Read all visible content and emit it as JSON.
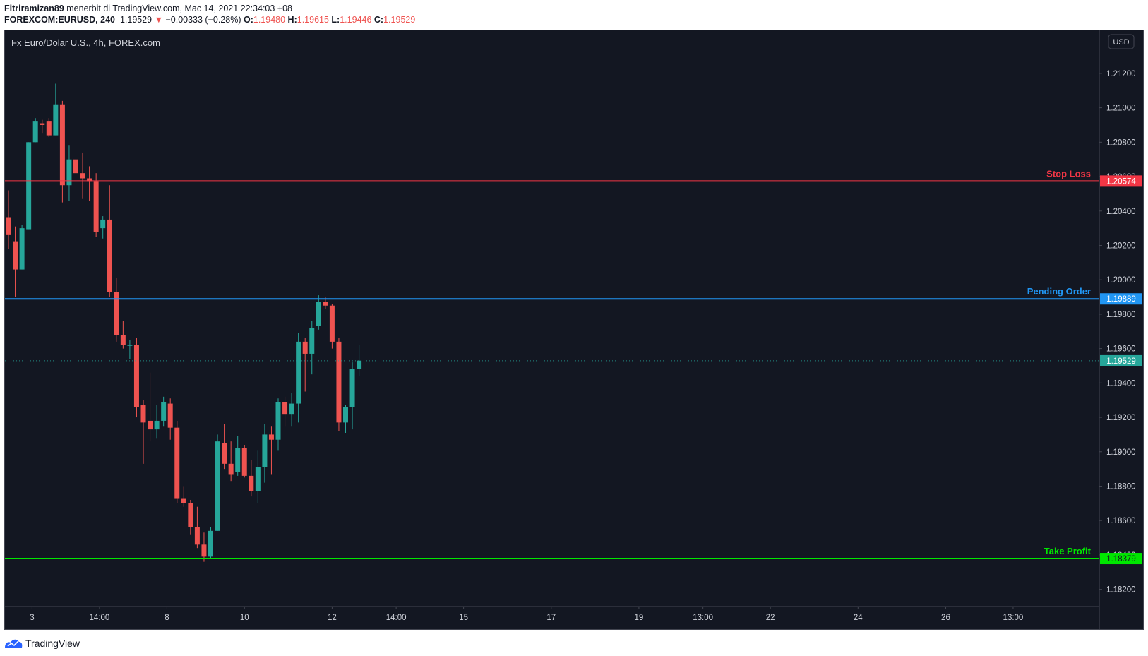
{
  "header": {
    "user": "Fitriramizan89",
    "published_text": "menerbit di TradingView.com, Mac 14, 2021 22:34:03 +08",
    "symbol": "FOREXCOM:EURUSD, 240",
    "last": "1.19529",
    "change": "−0.00333 (−0.28%)",
    "open_label": "O:",
    "open": "1.19480",
    "high_label": "H:",
    "high": "1.19615",
    "low_label": "L:",
    "low": "1.19446",
    "close_label": "C:",
    "close": "1.19529"
  },
  "chart_title": "Fx Euro/Dolar U.S., 4h, FOREX.com",
  "currency_button": "USD",
  "footer": {
    "brand": "TradingView"
  },
  "colors": {
    "background": "#131722",
    "up": "#26a69a",
    "down": "#ef5350",
    "stop_loss": "#f23645",
    "pending": "#2196f3",
    "take_profit": "#00e600"
  },
  "chart_data": {
    "type": "candlestick",
    "ylim": [
      1.181,
      1.2145
    ],
    "y_ticks": [
      "1.21200",
      "1.21000",
      "1.20800",
      "1.20600",
      "1.20400",
      "1.20200",
      "1.20000",
      "1.19800",
      "1.19600",
      "1.19400",
      "1.19200",
      "1.19000",
      "1.18800",
      "1.18600",
      "1.18400",
      "1.18200"
    ],
    "x_ticks": [
      {
        "label": "3",
        "pos": 3.5
      },
      {
        "label": "14:00",
        "pos": 13.5
      },
      {
        "label": "8",
        "pos": 23.5
      },
      {
        "label": "10",
        "pos": 35
      },
      {
        "label": "12",
        "pos": 48
      },
      {
        "label": "14:00",
        "pos": 57.5
      },
      {
        "label": "15",
        "pos": 67.5
      },
      {
        "label": "17",
        "pos": 80.5
      },
      {
        "label": "19",
        "pos": 93.5
      },
      {
        "label": "13:00",
        "pos": 103
      },
      {
        "label": "22",
        "pos": 113
      },
      {
        "label": "24",
        "pos": 126
      },
      {
        "label": "26",
        "pos": 139
      },
      {
        "label": "13:00",
        "pos": 149
      }
    ],
    "candles": [
      {
        "o": 1.2036,
        "h": 1.2052,
        "l": 1.2018,
        "c": 1.2026
      },
      {
        "o": 1.2022,
        "h": 1.2031,
        "l": 1.199,
        "c": 1.2006
      },
      {
        "o": 1.2006,
        "h": 1.2032,
        "l": 1.2006,
        "c": 1.203
      },
      {
        "o": 1.2029,
        "h": 1.208,
        "l": 1.2029,
        "c": 1.208
      },
      {
        "o": 1.208,
        "h": 1.2094,
        "l": 1.208,
        "c": 1.2092
      },
      {
        "o": 1.2091,
        "h": 1.2093,
        "l": 1.2085,
        "c": 1.209
      },
      {
        "o": 1.2092,
        "h": 1.2094,
        "l": 1.2083,
        "c": 1.2084
      },
      {
        "o": 1.2084,
        "h": 1.2114,
        "l": 1.2084,
        "c": 1.2102
      },
      {
        "o": 1.2102,
        "h": 1.2104,
        "l": 1.2045,
        "c": 1.2055
      },
      {
        "o": 1.2055,
        "h": 1.2078,
        "l": 1.2046,
        "c": 1.207
      },
      {
        "o": 1.207,
        "h": 1.2081,
        "l": 1.2059,
        "c": 1.2062
      },
      {
        "o": 1.2062,
        "h": 1.2074,
        "l": 1.2047,
        "c": 1.2059
      },
      {
        "o": 1.2059,
        "h": 1.2066,
        "l": 1.2046,
        "c": 1.2057
      },
      {
        "o": 1.2057,
        "h": 1.2062,
        "l": 1.2025,
        "c": 1.2028
      },
      {
        "o": 1.203,
        "h": 1.2037,
        "l": 1.2024,
        "c": 1.2035
      },
      {
        "o": 1.2035,
        "h": 1.2055,
        "l": 1.199,
        "c": 1.1993
      },
      {
        "o": 1.1993,
        "h": 1.2001,
        "l": 1.1964,
        "c": 1.1968
      },
      {
        "o": 1.1968,
        "h": 1.1976,
        "l": 1.196,
        "c": 1.1962
      },
      {
        "o": 1.1962,
        "h": 1.1965,
        "l": 1.1954,
        "c": 1.1962
      },
      {
        "o": 1.1962,
        "h": 1.1966,
        "l": 1.192,
        "c": 1.1926
      },
      {
        "o": 1.1927,
        "h": 1.193,
        "l": 1.1893,
        "c": 1.1917
      },
      {
        "o": 1.1918,
        "h": 1.1946,
        "l": 1.1906,
        "c": 1.1913
      },
      {
        "o": 1.1913,
        "h": 1.1927,
        "l": 1.1908,
        "c": 1.1918
      },
      {
        "o": 1.1918,
        "h": 1.1932,
        "l": 1.1915,
        "c": 1.1929
      },
      {
        "o": 1.1928,
        "h": 1.1931,
        "l": 1.1907,
        "c": 1.1914
      },
      {
        "o": 1.1914,
        "h": 1.1918,
        "l": 1.187,
        "c": 1.1873
      },
      {
        "o": 1.1873,
        "h": 1.188,
        "l": 1.1868,
        "c": 1.187
      },
      {
        "o": 1.187,
        "h": 1.1872,
        "l": 1.1852,
        "c": 1.1856
      },
      {
        "o": 1.1856,
        "h": 1.1868,
        "l": 1.1844,
        "c": 1.1846
      },
      {
        "o": 1.1846,
        "h": 1.1853,
        "l": 1.1836,
        "c": 1.1839
      },
      {
        "o": 1.1839,
        "h": 1.1856,
        "l": 1.1838,
        "c": 1.1854
      },
      {
        "o": 1.1854,
        "h": 1.191,
        "l": 1.1854,
        "c": 1.1906
      },
      {
        "o": 1.1905,
        "h": 1.1916,
        "l": 1.189,
        "c": 1.1893
      },
      {
        "o": 1.1893,
        "h": 1.1906,
        "l": 1.1883,
        "c": 1.1887
      },
      {
        "o": 1.1888,
        "h": 1.1909,
        "l": 1.1886,
        "c": 1.1902
      },
      {
        "o": 1.1902,
        "h": 1.1904,
        "l": 1.1885,
        "c": 1.1886
      },
      {
        "o": 1.1886,
        "h": 1.1895,
        "l": 1.1874,
        "c": 1.1877
      },
      {
        "o": 1.1877,
        "h": 1.1901,
        "l": 1.187,
        "c": 1.1891
      },
      {
        "o": 1.1891,
        "h": 1.1916,
        "l": 1.1882,
        "c": 1.191
      },
      {
        "o": 1.191,
        "h": 1.1915,
        "l": 1.1887,
        "c": 1.1907
      },
      {
        "o": 1.1907,
        "h": 1.1931,
        "l": 1.1901,
        "c": 1.1929
      },
      {
        "o": 1.1929,
        "h": 1.1932,
        "l": 1.1915,
        "c": 1.1922
      },
      {
        "o": 1.1922,
        "h": 1.1934,
        "l": 1.1915,
        "c": 1.1928
      },
      {
        "o": 1.1928,
        "h": 1.1969,
        "l": 1.1917,
        "c": 1.1964
      },
      {
        "o": 1.1964,
        "h": 1.1966,
        "l": 1.1935,
        "c": 1.1957
      },
      {
        "o": 1.1957,
        "h": 1.1976,
        "l": 1.1945,
        "c": 1.1972
      },
      {
        "o": 1.1973,
        "h": 1.1991,
        "l": 1.1971,
        "c": 1.1987
      },
      {
        "o": 1.1987,
        "h": 1.199,
        "l": 1.1983,
        "c": 1.1985
      },
      {
        "o": 1.1985,
        "h": 1.1986,
        "l": 1.196,
        "c": 1.1964
      },
      {
        "o": 1.1964,
        "h": 1.1966,
        "l": 1.1912,
        "c": 1.1917
      },
      {
        "o": 1.1917,
        "h": 1.1927,
        "l": 1.1911,
        "c": 1.1926
      },
      {
        "o": 1.1926,
        "h": 1.1952,
        "l": 1.1913,
        "c": 1.1948
      },
      {
        "o": 1.1948,
        "h": 1.1962,
        "l": 1.1944,
        "c": 1.1953
      }
    ],
    "current_price": 1.19529,
    "current_label": "1.19529",
    "levels": [
      {
        "name": "Stop Loss",
        "price": 1.20574,
        "label": "1.20574",
        "color": "#f23645"
      },
      {
        "name": "Pending Order",
        "price": 1.19889,
        "label": "1.19889",
        "color": "#2196f3"
      },
      {
        "name": "Take Profit",
        "price": 1.18379,
        "label": "1.18379",
        "color": "#00e600"
      }
    ]
  }
}
